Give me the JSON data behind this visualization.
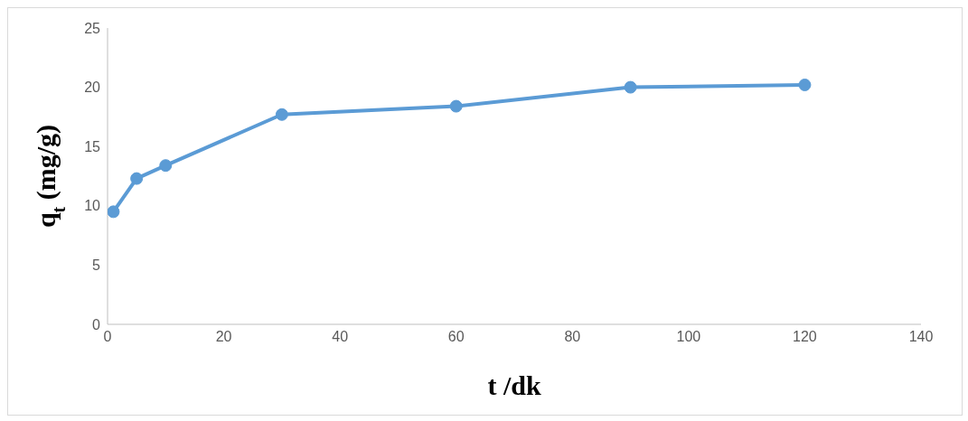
{
  "chart_data": {
    "type": "line",
    "xlabel": "t /dk",
    "ylabel": "q$_{t}$ (mg/g)",
    "x": [
      1,
      5,
      10,
      30,
      60,
      90,
      120
    ],
    "series": [
      {
        "color": "#5b9bd5",
        "values": [
          9.5,
          12.3,
          13.4,
          17.7,
          18.4,
          20.0,
          20.2
        ]
      }
    ],
    "xlim": [
      0,
      140
    ],
    "xticks": [
      0,
      20,
      40,
      60,
      80,
      100,
      120,
      140
    ],
    "ylim": [
      0,
      25
    ],
    "yticks": [
      0,
      5,
      10,
      15,
      20,
      25
    ],
    "grid": false,
    "legend": false,
    "marker": "circle",
    "line_style": "solid"
  }
}
